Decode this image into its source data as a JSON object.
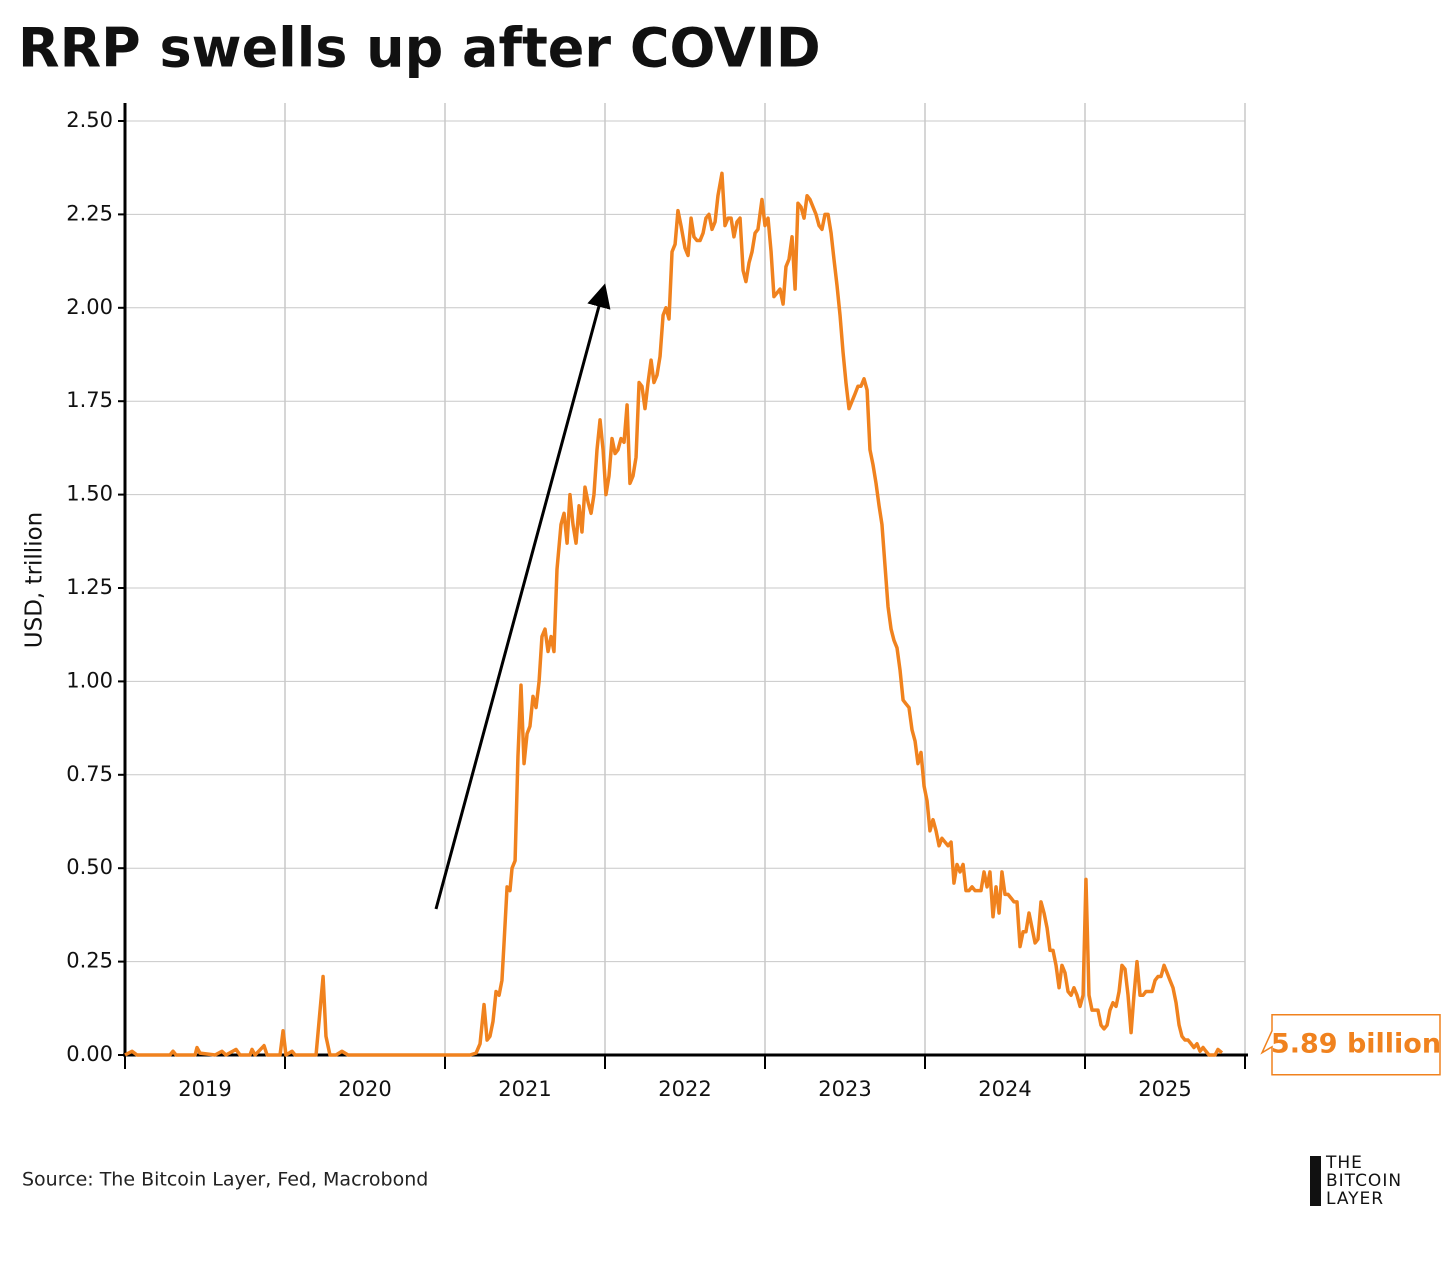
{
  "chart_data": {
    "type": "line",
    "title": "RRP swells up after COVID",
    "ylabel": "USD, trillion",
    "source": "Source: The Bitcoin Layer, Fed, Macrobond",
    "logo": [
      "THE",
      "BITCOIN",
      "LAYER"
    ],
    "end_label": "5.89 billion",
    "color": "#f0821e",
    "xlim": [
      2019,
      2026
    ],
    "xticks": [
      {
        "value": 2019.5,
        "label": "2019"
      },
      {
        "value": 2020.5,
        "label": "2020"
      },
      {
        "value": 2021.5,
        "label": "2021"
      },
      {
        "value": 2022.5,
        "label": "2022"
      },
      {
        "value": 2023.5,
        "label": "2023"
      },
      {
        "value": 2024.5,
        "label": "2024"
      },
      {
        "value": 2025.5,
        "label": "2025"
      }
    ],
    "xgrid": [
      2019,
      2020,
      2021,
      2022,
      2023,
      2024,
      2025,
      2026
    ],
    "ylim": [
      0,
      2.5
    ],
    "yticks": [
      {
        "value": 0,
        "label": "0.00"
      },
      {
        "value": 0.25,
        "label": "0.25"
      },
      {
        "value": 0.5,
        "label": "0.50"
      },
      {
        "value": 0.75,
        "label": "0.75"
      },
      {
        "value": 1,
        "label": "1.00"
      },
      {
        "value": 1.25,
        "label": "1.25"
      },
      {
        "value": 1.5,
        "label": "1.50"
      },
      {
        "value": 1.75,
        "label": "1.75"
      },
      {
        "value": 2,
        "label": "2.00"
      },
      {
        "value": 2.25,
        "label": "2.25"
      },
      {
        "value": 2.5,
        "label": "2.50"
      }
    ],
    "grid": true,
    "x": [
      2019,
      2019.044,
      2019.075,
      2019.281,
      2019.3,
      2019.319,
      2019.438,
      2019.45,
      2019.469,
      2019.563,
      2019.606,
      2019.631,
      2019.694,
      2019.719,
      2019.781,
      2019.794,
      2019.813,
      2019.869,
      2019.888,
      2019.969,
      2019.988,
      2020.006,
      2020.044,
      2020.063,
      2020.194,
      2020.238,
      2020.256,
      2020.281,
      2020.319,
      2020.356,
      2020.394,
      2020.469,
      2021.156,
      2021.194,
      2021.219,
      2021.244,
      2021.263,
      2021.281,
      2021.3,
      2021.319,
      2021.338,
      2021.356,
      2021.369,
      2021.388,
      2021.406,
      2021.419,
      2021.438,
      2021.456,
      2021.475,
      2021.494,
      2021.513,
      2021.531,
      2021.55,
      2021.569,
      2021.588,
      2021.606,
      2021.625,
      2021.644,
      2021.663,
      2021.681,
      2021.7,
      2021.725,
      2021.744,
      2021.763,
      2021.781,
      2021.8,
      2021.819,
      2021.838,
      2021.856,
      2021.875,
      2021.894,
      2021.913,
      2021.931,
      2021.95,
      2021.969,
      2021.988,
      2022.006,
      2022.025,
      2022.044,
      2022.063,
      2022.081,
      2022.1,
      2022.119,
      2022.138,
      2022.156,
      2022.175,
      2022.194,
      2022.213,
      2022.231,
      2022.25,
      2022.269,
      2022.288,
      2022.306,
      2022.325,
      2022.344,
      2022.363,
      2022.381,
      2022.4,
      2022.419,
      2022.438,
      2022.456,
      2022.475,
      2022.5,
      2022.519,
      2022.538,
      2022.556,
      2022.575,
      2022.594,
      2022.613,
      2022.631,
      2022.65,
      2022.669,
      2022.688,
      2022.706,
      2022.731,
      2022.75,
      2022.769,
      2022.788,
      2022.806,
      2022.825,
      2022.844,
      2022.863,
      2022.881,
      2022.9,
      2022.919,
      2022.938,
      2022.956,
      2022.981,
      2023.0,
      2023.019,
      2023.038,
      2023.056,
      2023.075,
      2023.094,
      2023.113,
      2023.131,
      2023.15,
      2023.169,
      2023.188,
      2023.206,
      2023.225,
      2023.244,
      2023.263,
      2023.281,
      2023.3,
      2023.319,
      2023.338,
      2023.356,
      2023.375,
      2023.394,
      2023.413,
      2023.431,
      2023.45,
      2023.469,
      2023.488,
      2023.506,
      2023.525,
      2023.544,
      2023.563,
      2023.581,
      2023.6,
      2023.619,
      2023.638,
      2023.656,
      2023.675,
      2023.694,
      2023.713,
      2023.731,
      2023.75,
      2023.769,
      2023.788,
      2023.806,
      2023.825,
      2023.844,
      2023.863,
      2023.881,
      2023.9,
      2023.919,
      2023.938,
      2023.956,
      2023.975,
      2023.994,
      2024.013,
      2024.031,
      2024.05,
      2024.069,
      2024.088,
      2024.106,
      2024.125,
      2024.144,
      2024.163,
      2024.181,
      2024.2,
      2024.219,
      2024.238,
      2024.256,
      2024.275,
      2024.294,
      2024.313,
      2024.331,
      2024.35,
      2024.369,
      2024.388,
      2024.406,
      2024.425,
      2024.444,
      2024.463,
      2024.481,
      2024.5,
      2024.519,
      2024.538,
      2024.556,
      2024.575,
      2024.594,
      2024.613,
      2024.631,
      2024.65,
      2024.669,
      2024.688,
      2024.706,
      2024.725,
      2024.744,
      2024.763,
      2024.781,
      2024.8,
      2024.819,
      2024.838,
      2024.856,
      2024.875,
      2024.894,
      2024.913,
      2024.931,
      2024.95,
      2024.969,
      2024.988,
      2025.006,
      2025.025,
      2025.044,
      2025.063,
      2025.081,
      2025.1,
      2025.119,
      2025.138,
      2025.156,
      2025.175,
      2025.194,
      2025.213,
      2025.231,
      2025.25,
      2025.269,
      2025.288,
      2025.306,
      2025.325,
      2025.344,
      2025.363,
      2025.381,
      2025.4,
      2025.419,
      2025.438,
      2025.456,
      2025.475,
      2025.494,
      2025.513,
      2025.531,
      2025.55,
      2025.569,
      2025.588,
      2025.606,
      2025.625,
      2025.644,
      2025.663,
      2025.681,
      2025.7,
      2025.719,
      2025.738,
      2025.756,
      2025.775,
      2025.794,
      2025.813,
      2025.831,
      2025.856
    ],
    "values": [
      0,
      0.01,
      0,
      0,
      0.01,
      0,
      0,
      0.02,
      0.005,
      0,
      0.01,
      0,
      0.015,
      0,
      0,
      0.015,
      0,
      0.025,
      0,
      0,
      0.065,
      0,
      0.01,
      0,
      0,
      0.21,
      0.05,
      0,
      0,
      0.01,
      0,
      0,
      0,
      0.005,
      0.03,
      0.135,
      0.04,
      0.05,
      0.09,
      0.17,
      0.16,
      0.2,
      0.3,
      0.45,
      0.44,
      0.5,
      0.52,
      0.8,
      0.99,
      0.78,
      0.86,
      0.88,
      0.96,
      0.93,
      1.0,
      1.12,
      1.14,
      1.08,
      1.12,
      1.08,
      1.3,
      1.42,
      1.45,
      1.37,
      1.5,
      1.42,
      1.37,
      1.47,
      1.4,
      1.52,
      1.48,
      1.45,
      1.5,
      1.62,
      1.7,
      1.62,
      1.5,
      1.55,
      1.65,
      1.61,
      1.62,
      1.65,
      1.64,
      1.74,
      1.53,
      1.55,
      1.6,
      1.8,
      1.79,
      1.73,
      1.8,
      1.86,
      1.8,
      1.82,
      1.87,
      1.98,
      2.0,
      1.97,
      2.15,
      2.17,
      2.26,
      2.22,
      2.16,
      2.14,
      2.24,
      2.19,
      2.18,
      2.18,
      2.2,
      2.24,
      2.25,
      2.21,
      2.23,
      2.3,
      2.36,
      2.22,
      2.24,
      2.24,
      2.19,
      2.23,
      2.24,
      2.1,
      2.07,
      2.12,
      2.15,
      2.2,
      2.21,
      2.29,
      2.22,
      2.24,
      2.15,
      2.03,
      2.04,
      2.05,
      2.01,
      2.11,
      2.13,
      2.19,
      2.05,
      2.28,
      2.27,
      2.24,
      2.3,
      2.29,
      2.27,
      2.25,
      2.22,
      2.21,
      2.25,
      2.25,
      2.2,
      2.13,
      2.06,
      1.98,
      1.88,
      1.8,
      1.73,
      1.75,
      1.77,
      1.79,
      1.79,
      1.81,
      1.78,
      1.62,
      1.58,
      1.53,
      1.47,
      1.42,
      1.31,
      1.2,
      1.14,
      1.11,
      1.09,
      1.03,
      0.95,
      0.94,
      0.93,
      0.87,
      0.84,
      0.78,
      0.81,
      0.72,
      0.68,
      0.6,
      0.63,
      0.6,
      0.56,
      0.58,
      0.57,
      0.56,
      0.57,
      0.46,
      0.51,
      0.49,
      0.51,
      0.44,
      0.44,
      0.45,
      0.44,
      0.44,
      0.44,
      0.49,
      0.45,
      0.49,
      0.37,
      0.45,
      0.38,
      0.49,
      0.43,
      0.43,
      0.42,
      0.41,
      0.41,
      0.29,
      0.33,
      0.33,
      0.38,
      0.34,
      0.3,
      0.31,
      0.41,
      0.38,
      0.34,
      0.28,
      0.28,
      0.24,
      0.18,
      0.24,
      0.22,
      0.17,
      0.16,
      0.18,
      0.16,
      0.13,
      0.16,
      0.47,
      0.16,
      0.12,
      0.12,
      0.12,
      0.08,
      0.07,
      0.08,
      0.12,
      0.14,
      0.13,
      0.17,
      0.24,
      0.23,
      0.16,
      0.06,
      0.16,
      0.25,
      0.16,
      0.16,
      0.17,
      0.17,
      0.17,
      0.2,
      0.21,
      0.21,
      0.24,
      0.22,
      0.2,
      0.18,
      0.14,
      0.08,
      0.05,
      0.04,
      0.04,
      0.03,
      0.02,
      0.03,
      0.01,
      0.02,
      0.01,
      0,
      0,
      0,
      0.015,
      0.00589
    ]
  }
}
